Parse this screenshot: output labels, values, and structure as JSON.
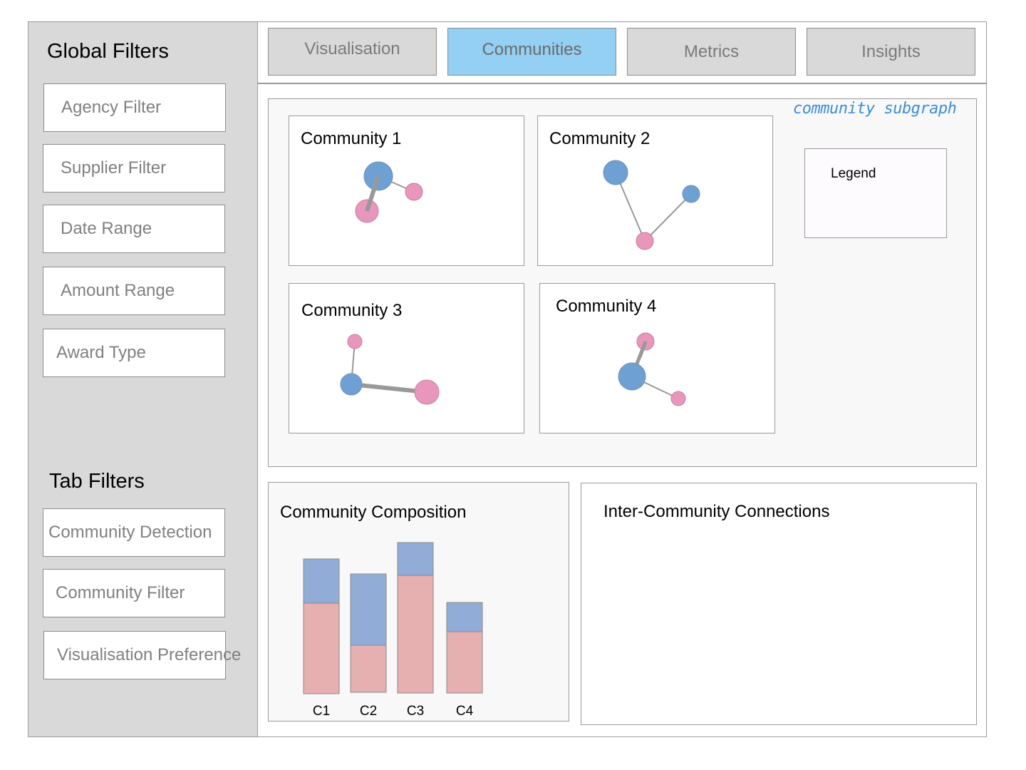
{
  "sidebar": {
    "global_heading": "Global Filters",
    "global_filters": [
      "Agency Filter",
      "Supplier Filter",
      "Date Range",
      "Amount Range",
      "Award Type"
    ],
    "tab_heading": "Tab Filters",
    "tab_filters": [
      "Community Detection",
      "Community Filter",
      "Visualisation Preference"
    ]
  },
  "tabs": [
    {
      "label": "Visualisation",
      "active": false
    },
    {
      "label": "Communities",
      "active": true
    },
    {
      "label": "Metrics",
      "active": false
    },
    {
      "label": "Insights",
      "active": false
    }
  ],
  "subgraph_panel": {
    "annotation": "community subgraph",
    "communities": [
      {
        "title": "Community 1"
      },
      {
        "title": "Community 2"
      },
      {
        "title": "Community 3"
      },
      {
        "title": "Community 4"
      }
    ],
    "legend_title": "Legend"
  },
  "composition": {
    "title": "Community Composition"
  },
  "connections": {
    "title": "Inter-Community Connections"
  },
  "colors": {
    "node_blue": "#6fa0d3",
    "node_pink": "#e896bc",
    "bar_blue": "#92acd8",
    "bar_pink": "#e6afb0",
    "active_tab": "#93d0f3"
  },
  "chart_data": {
    "type": "bar",
    "categories": [
      "C1",
      "C2",
      "C3",
      "C4"
    ],
    "series": [
      {
        "values": [
          0.67,
          0.4,
          0.78,
          0.68
        ]
      },
      {
        "values": [
          0.33,
          0.6,
          0.22,
          0.32
        ]
      }
    ],
    "ylim": [
      0,
      1
    ]
  }
}
